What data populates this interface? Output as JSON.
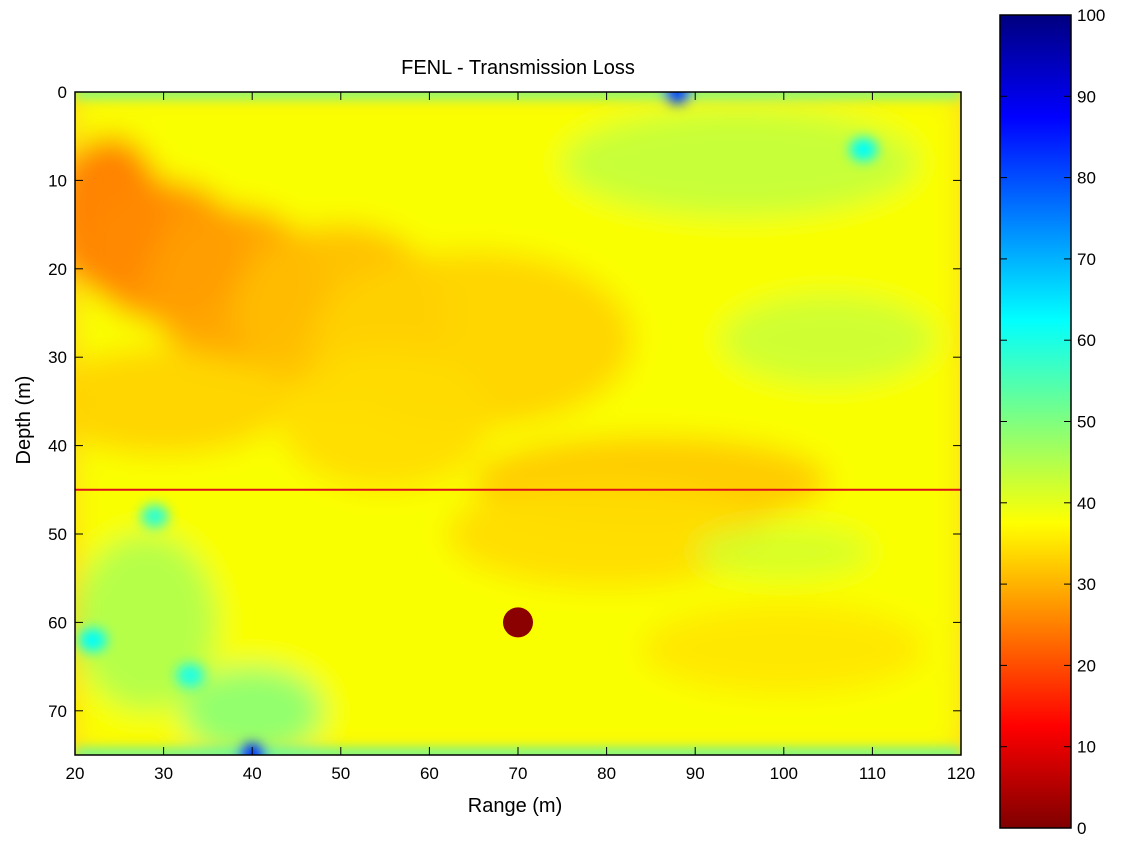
{
  "chart_data": {
    "type": "heatmap",
    "title": "FENL - Transmission Loss",
    "xlabel": "Range (m)",
    "ylabel": "Depth (m)",
    "xlim": [
      20,
      120
    ],
    "ylim": [
      75,
      0
    ],
    "y_reversed": true,
    "x_ticks": [
      20,
      30,
      40,
      50,
      60,
      70,
      80,
      90,
      100,
      110,
      120
    ],
    "y_ticks": [
      0,
      10,
      20,
      30,
      40,
      50,
      60,
      70
    ],
    "colorbar": {
      "colormap": "jet",
      "min": 0,
      "max": 100,
      "ticks": [
        0,
        10,
        20,
        30,
        40,
        50,
        60,
        70,
        80,
        90,
        100
      ]
    },
    "field_description_values": {
      "background_value": 38,
      "features": [
        {
          "kind": "low_loss_region",
          "range": 25,
          "depth": 15,
          "value": 25
        },
        {
          "kind": "low_loss_region",
          "range": 40,
          "depth": 22,
          "value": 28
        },
        {
          "kind": "high_loss_spot",
          "range": 88,
          "depth": 0,
          "value": 80
        },
        {
          "kind": "high_loss_spot",
          "range": 109,
          "depth": 6.5,
          "value": 62
        },
        {
          "kind": "high_loss_spot",
          "range": 40,
          "depth": 75,
          "value": 82
        },
        {
          "kind": "high_loss_spot",
          "range": 22,
          "depth": 62,
          "value": 62
        },
        {
          "kind": "high_loss_spot",
          "range": 33,
          "depth": 66,
          "value": 60
        },
        {
          "kind": "high_loss_spot",
          "range": 29,
          "depth": 48,
          "value": 58
        }
      ]
    },
    "horizontal_line": {
      "depth": 45,
      "color": "#e0101a"
    },
    "source_marker": {
      "range": 70,
      "depth": 60,
      "color": "#8b0000"
    }
  }
}
